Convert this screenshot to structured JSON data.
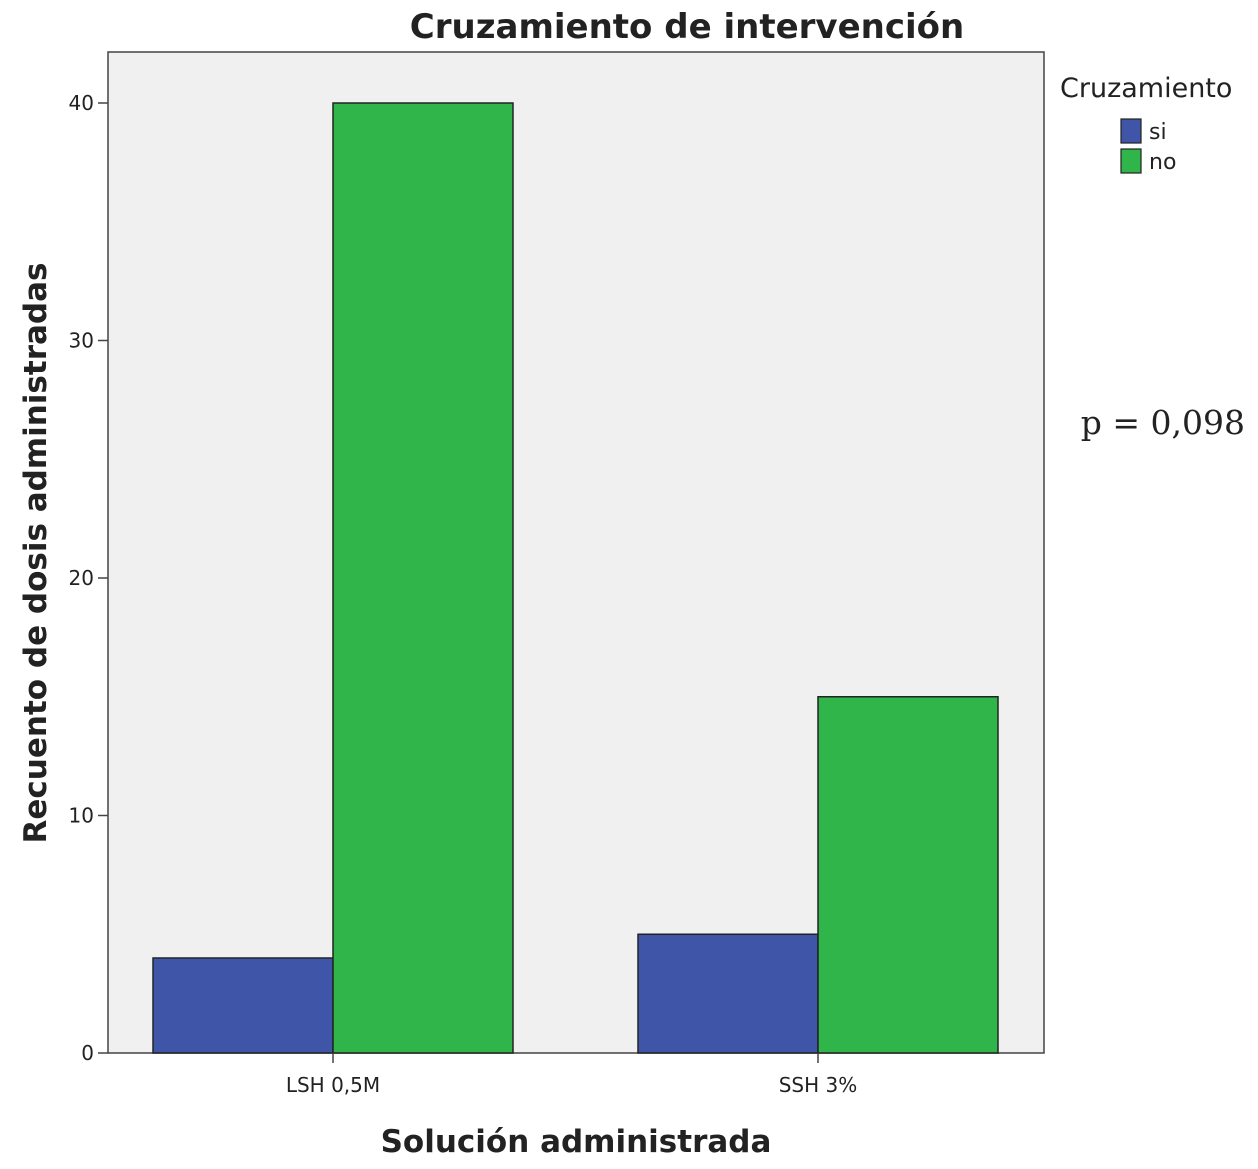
{
  "chart_data": {
    "type": "bar",
    "title": "Cruzamiento de intervención",
    "xlabel": "Solución administrada",
    "ylabel": "Recuento de dosis administradas",
    "categories": [
      "LSH 0,5M",
      "SSH 3%"
    ],
    "series": [
      {
        "name": "si",
        "values": [
          4,
          5
        ],
        "color": "#3f56a8"
      },
      {
        "name": "no",
        "values": [
          40,
          15
        ],
        "color": "#2fb54a"
      }
    ],
    "ylim": [
      0,
      42
    ],
    "yticks": [
      0,
      10,
      20,
      30,
      40
    ],
    "legend": {
      "title": "Cruzamiento",
      "position": "right"
    },
    "annotation": "p = 0,098",
    "plot_background": "#f0f0f0",
    "grid": false
  }
}
